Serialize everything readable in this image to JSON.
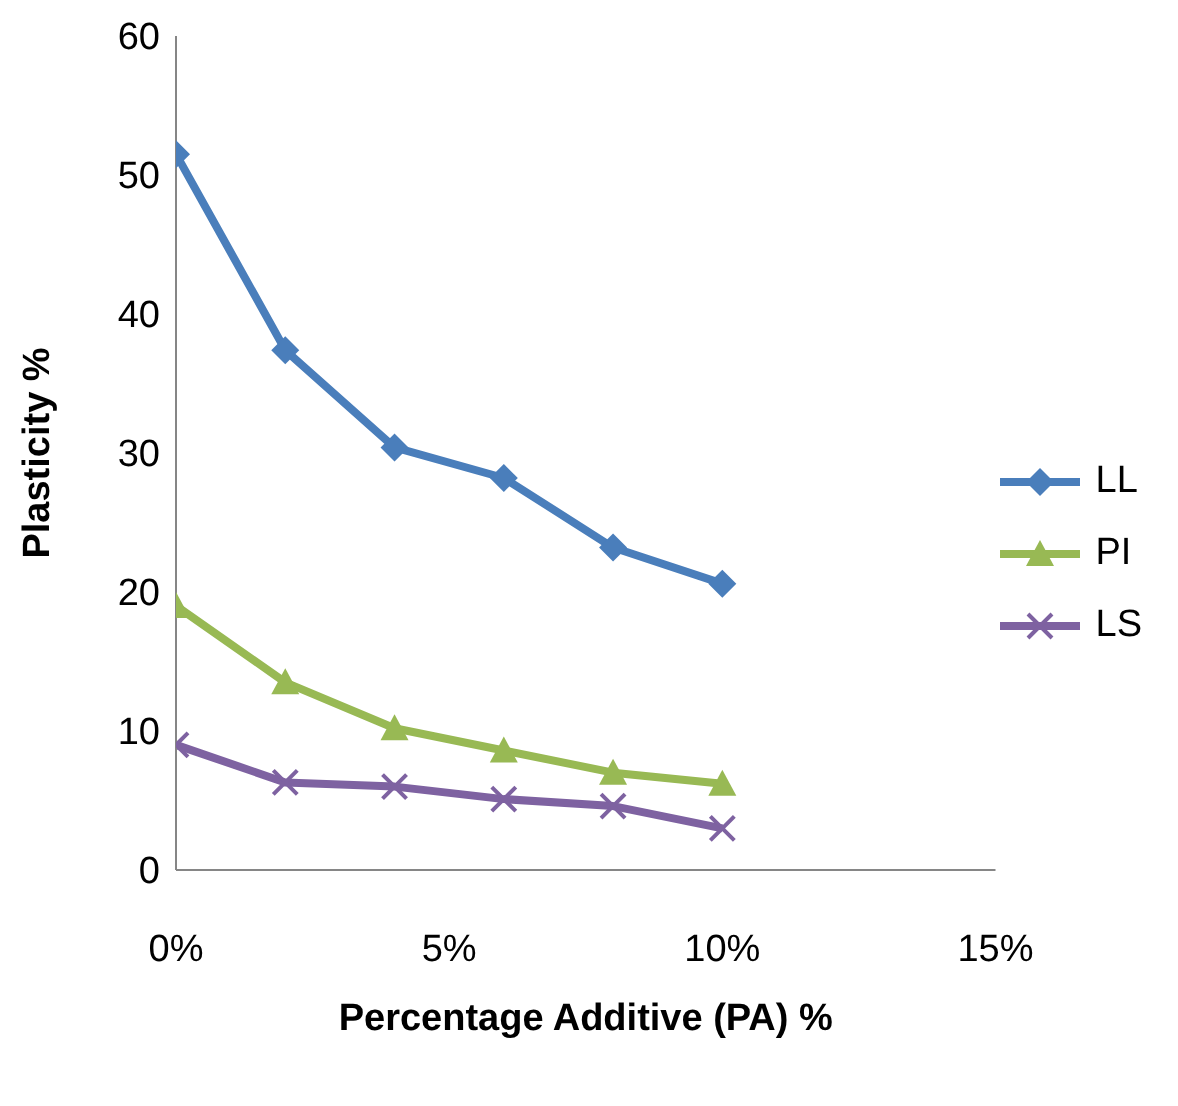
{
  "chart_data": {
    "type": "line",
    "xlabel": "Percentage Additive (PA) %",
    "ylabel": "Plasticity %",
    "x": [
      0,
      0.02,
      0.04,
      0.06,
      0.08,
      0.1
    ],
    "series": [
      {
        "name": "LL",
        "color": "#4a7ebb",
        "marker": "diamond",
        "values": [
          51.5,
          37.4,
          30.4,
          28.2,
          23.2,
          20.6
        ]
      },
      {
        "name": "PI",
        "color": "#98b954",
        "marker": "triangle",
        "values": [
          19,
          13.5,
          10.2,
          8.6,
          7,
          6.2
        ]
      },
      {
        "name": "LS",
        "color": "#7e62a1",
        "marker": "cross",
        "values": [
          9,
          6.3,
          6,
          5.1,
          4.6,
          3
        ]
      }
    ],
    "xlim": [
      0,
      0.15
    ],
    "xticks": [
      {
        "value": 0,
        "label": "0%"
      },
      {
        "value": 0.05,
        "label": "5%"
      },
      {
        "value": 0.1,
        "label": "10%"
      },
      {
        "value": 0.15,
        "label": "15%"
      }
    ],
    "ylim": [
      0,
      60
    ],
    "yticks": [
      0,
      10,
      20,
      30,
      40,
      50,
      60
    ],
    "grid": false,
    "legend": "right"
  }
}
